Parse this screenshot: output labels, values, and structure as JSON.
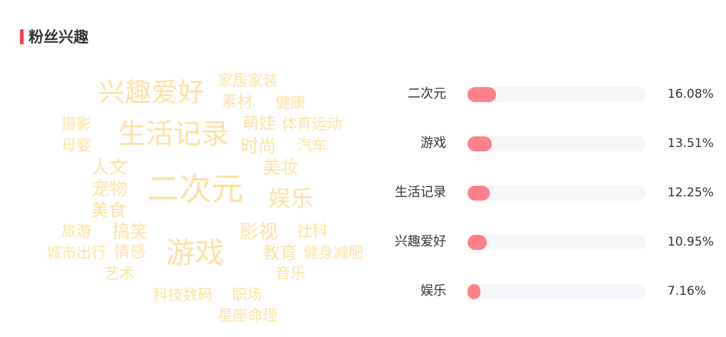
{
  "section": {
    "title": "粉丝兴趣",
    "accent_color": "#ff3b4e"
  },
  "word_cloud": {
    "color": "#fde2a6",
    "words": [
      "兴趣爱好",
      "家居家装",
      "素材",
      "健康",
      "摄影",
      "生活记录",
      "萌娃",
      "体育运动",
      "母婴",
      "时尚",
      "汽车",
      "人文",
      "美妆",
      "宠物",
      "二次元",
      "娱乐",
      "美食",
      "旅游",
      "搞笑",
      "影视",
      "社科",
      "游戏",
      "城市出行",
      "情感",
      "教育",
      "健身减肥",
      "艺术",
      "音乐",
      "科技数码",
      "职场",
      "星座命理"
    ]
  },
  "ranking": {
    "bar_color": "#ff808b",
    "track_color": "#f5f6fa",
    "items": [
      {
        "label": "二次元",
        "value": 16.08,
        "text": "16.08%"
      },
      {
        "label": "游戏",
        "value": 13.51,
        "text": "13.51%"
      },
      {
        "label": "生活记录",
        "value": 12.25,
        "text": "12.25%"
      },
      {
        "label": "兴趣爱好",
        "value": 10.95,
        "text": "10.95%"
      },
      {
        "label": "娱乐",
        "value": 7.16,
        "text": "7.16%"
      }
    ]
  }
}
